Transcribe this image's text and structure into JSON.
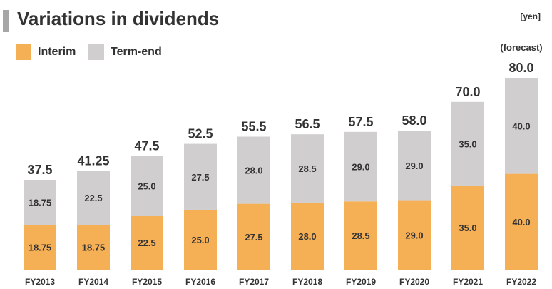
{
  "header": {
    "title": "Variations in dividends",
    "unit": "[yen]"
  },
  "colors": {
    "interim": "#f5af55",
    "term_end": "#d0cecf",
    "title_bar": "#a6a6a6"
  },
  "chart_data": {
    "type": "bar",
    "stacked": true,
    "title": "Variations in dividends",
    "xlabel": "",
    "ylabel": "",
    "unit": "[yen]",
    "categories": [
      "FY2013",
      "FY2014",
      "FY2015",
      "FY2016",
      "FY2017",
      "FY2018",
      "FY2019",
      "FY2020",
      "FY2021",
      "FY2022"
    ],
    "series": [
      {
        "name": "Interim",
        "values": [
          18.75,
          18.75,
          22.5,
          25.0,
          27.5,
          28.0,
          28.5,
          29.0,
          35.0,
          40.0
        ],
        "labels": [
          "18.75",
          "18.75",
          "22.5",
          "25.0",
          "27.5",
          "28.0",
          "28.5",
          "29.0",
          "35.0",
          "40.0"
        ]
      },
      {
        "name": "Term-end",
        "values": [
          18.75,
          22.5,
          25.0,
          27.5,
          28.0,
          28.5,
          29.0,
          29.0,
          35.0,
          40.0
        ],
        "labels": [
          "18.75",
          "22.5",
          "25.0",
          "27.5",
          "28.0",
          "28.5",
          "29.0",
          "29.0",
          "35.0",
          "40.0"
        ]
      }
    ],
    "totals": [
      37.5,
      41.25,
      47.5,
      52.5,
      55.5,
      56.5,
      57.5,
      58.0,
      70.0,
      80.0
    ],
    "total_labels": [
      "37.5",
      "41.25",
      "47.5",
      "52.5",
      "55.5",
      "56.5",
      "57.5",
      "58.0",
      "70.0",
      "80.0"
    ],
    "annotations": [
      {
        "category": "FY2022",
        "text": "(forecast)"
      }
    ],
    "ylim": [
      0,
      80
    ],
    "grid": false,
    "legend": "top-left"
  }
}
